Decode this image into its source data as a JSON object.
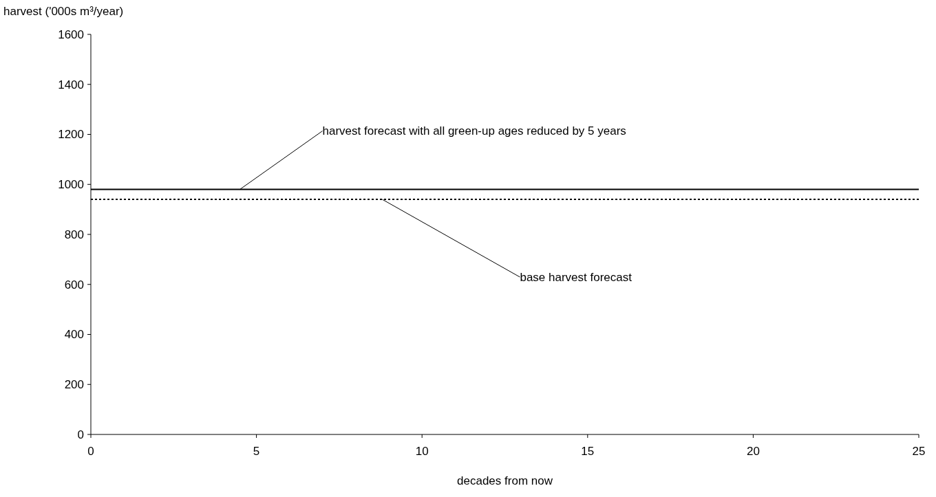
{
  "chart_data": {
    "type": "line",
    "xlabel": "decades from now",
    "ylabel": "harvest ('000s m³/year)",
    "x": [
      0,
      25
    ],
    "series": [
      {
        "color": "#000000",
        "values": [
          980,
          980
        ],
        "line_style": "solid"
      },
      {
        "color": "#000000",
        "values": [
          940,
          940
        ],
        "line_style": "dotted"
      }
    ],
    "xlim": [
      0,
      25
    ],
    "xticks": [
      0,
      5,
      10,
      15,
      20,
      25
    ],
    "ylim": [
      0,
      1600
    ],
    "yticks": [
      0,
      200,
      400,
      600,
      800,
      1000,
      1200,
      1400,
      1600
    ],
    "grid": false,
    "annotations": [
      {
        "text": "harvest forecast with all green-up ages reduced by 5 years",
        "x": 4.5,
        "y": 980
      },
      {
        "text": "base harvest forecast",
        "x": 8.8,
        "y": 940
      }
    ]
  }
}
